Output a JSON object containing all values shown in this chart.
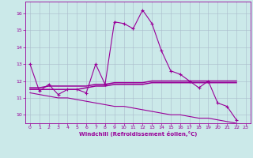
{
  "xlabel": "Windchill (Refroidissement éolien,°C)",
  "background_color": "#cbe9e9",
  "grid_color": "#aabbcc",
  "line_color": "#990099",
  "xlim": [
    -0.5,
    23.5
  ],
  "ylim": [
    9.5,
    16.7
  ],
  "yticks": [
    10,
    11,
    12,
    13,
    14,
    15,
    16
  ],
  "xticks": [
    0,
    1,
    2,
    3,
    4,
    5,
    6,
    7,
    8,
    9,
    10,
    11,
    12,
    13,
    14,
    15,
    16,
    17,
    18,
    19,
    20,
    21,
    22,
    23
  ],
  "series1_x": [
    0,
    1,
    2,
    3,
    4,
    5,
    6,
    7,
    8,
    9,
    10,
    11,
    12,
    13,
    14,
    15,
    16,
    17,
    18,
    19,
    20,
    21,
    22
  ],
  "series1_y": [
    13.0,
    11.4,
    11.8,
    11.2,
    11.5,
    11.5,
    11.3,
    13.0,
    11.8,
    15.5,
    15.4,
    15.1,
    16.2,
    15.4,
    13.8,
    12.6,
    12.4,
    12.0,
    11.6,
    12.0,
    10.7,
    10.5,
    9.7
  ],
  "series2_x": [
    0,
    1,
    2,
    3,
    4,
    5,
    6,
    7,
    8,
    9,
    10,
    11,
    12,
    13,
    14,
    15,
    16,
    17,
    18,
    19,
    20,
    21,
    22
  ],
  "series2_y": [
    11.6,
    11.6,
    11.7,
    11.7,
    11.7,
    11.7,
    11.7,
    11.8,
    11.8,
    11.9,
    11.9,
    11.9,
    11.9,
    12.0,
    12.0,
    12.0,
    12.0,
    12.0,
    12.0,
    12.0,
    12.0,
    12.0,
    12.0
  ],
  "series3_x": [
    0,
    1,
    2,
    3,
    4,
    5,
    6,
    7,
    8,
    9,
    10,
    11,
    12,
    13,
    14,
    15,
    16,
    17,
    18,
    19,
    20,
    21,
    22
  ],
  "series3_y": [
    11.5,
    11.5,
    11.5,
    11.5,
    11.5,
    11.5,
    11.6,
    11.7,
    11.7,
    11.8,
    11.8,
    11.8,
    11.8,
    11.9,
    11.9,
    11.9,
    11.9,
    11.9,
    11.9,
    11.9,
    11.9,
    11.9,
    11.9
  ],
  "series4_x": [
    0,
    1,
    2,
    3,
    4,
    5,
    6,
    7,
    8,
    9,
    10,
    11,
    12,
    13,
    14,
    15,
    16,
    17,
    18,
    19,
    20,
    21,
    22
  ],
  "series4_y": [
    11.3,
    11.2,
    11.1,
    11.0,
    11.0,
    10.9,
    10.8,
    10.7,
    10.6,
    10.5,
    10.5,
    10.4,
    10.3,
    10.2,
    10.1,
    10.0,
    10.0,
    9.9,
    9.8,
    9.8,
    9.7,
    9.6,
    9.5
  ]
}
